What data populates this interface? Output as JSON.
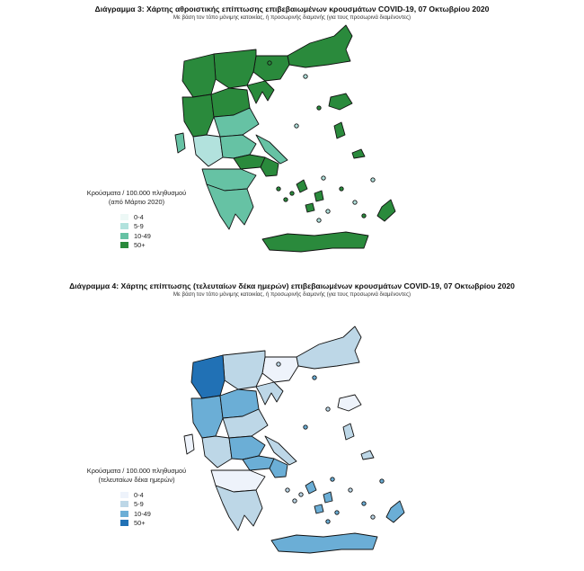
{
  "maps": [
    {
      "title": "Διάγραμμα 3: Χάρτης αθροιστικής επίπτωσης επιβεβαιωμένων κρουσμάτων COVID-19, 07 Οκτωβρίου 2020",
      "subtitle": "Με βάση τον τόπο μόνιμης κατοικίας, ή προσωρινής διαμονής (για τους προσωρινά διαμένοντες)",
      "legend": {
        "title_line1": "Κρούσματα / 100.000 πληθυσμού",
        "title_line2": "(από Μάρτιο 2020)",
        "classes": [
          "0-4",
          "5-9",
          "10-49",
          "50+"
        ],
        "colors": [
          "#edf8f6",
          "#b2e2dd",
          "#66c2a4",
          "#2a8a3c"
        ]
      },
      "region_classes": {
        "thrace": 3,
        "east_mac": 3,
        "central_mac": 3,
        "west_mac": 3,
        "chalkidiki": 3,
        "epirus": 3,
        "thessaly_n": 3,
        "thessaly_s": 2,
        "aetolia": 1,
        "fthiotida": 2,
        "boeotia": 3,
        "attica": 3,
        "euboea": 2,
        "peloponnese_n": 2,
        "peloponnese_s": 2,
        "crete": 3,
        "lesvos": 3,
        "chios": 3,
        "samos": 3,
        "rhodes": 3,
        "ionian": 2,
        "cyclades": 3
      }
    },
    {
      "title": "Διάγραμμα 4: Χάρτης επίπτωσης (τελευταίων δέκα ημερών) επιβεβαιωμένων κρουσμάτων COVID-19, 07 Οκτωβρίου 2020",
      "subtitle": "Με βάση τον τόπο μόνιμης κατοικίας, ή προσωρινής διαμονής (για τους προσωρινά διαμένοντες)",
      "legend": {
        "title_line1": "Κρούσματα / 100.000 πληθυσμού",
        "title_line2": "(τελευταίων δέκα ημερών)",
        "classes": [
          "0-4",
          "5-9",
          "10-49",
          "50+"
        ],
        "colors": [
          "#eef3fb",
          "#bdd7e7",
          "#6baed6",
          "#2171b5"
        ]
      },
      "region_classes": {
        "thrace": 1,
        "east_mac": 0,
        "central_mac": 1,
        "west_mac": 3,
        "chalkidiki": 1,
        "epirus": 2,
        "thessaly_n": 2,
        "thessaly_s": 1,
        "aetolia": 1,
        "fthiotida": 2,
        "boeotia": 2,
        "attica": 2,
        "euboea": 1,
        "peloponnese_n": 0,
        "peloponnese_s": 1,
        "crete": 2,
        "lesvos": 0,
        "chios": 1,
        "samos": 1,
        "rhodes": 2,
        "ionian": 0,
        "cyclades": 2
      }
    }
  ]
}
